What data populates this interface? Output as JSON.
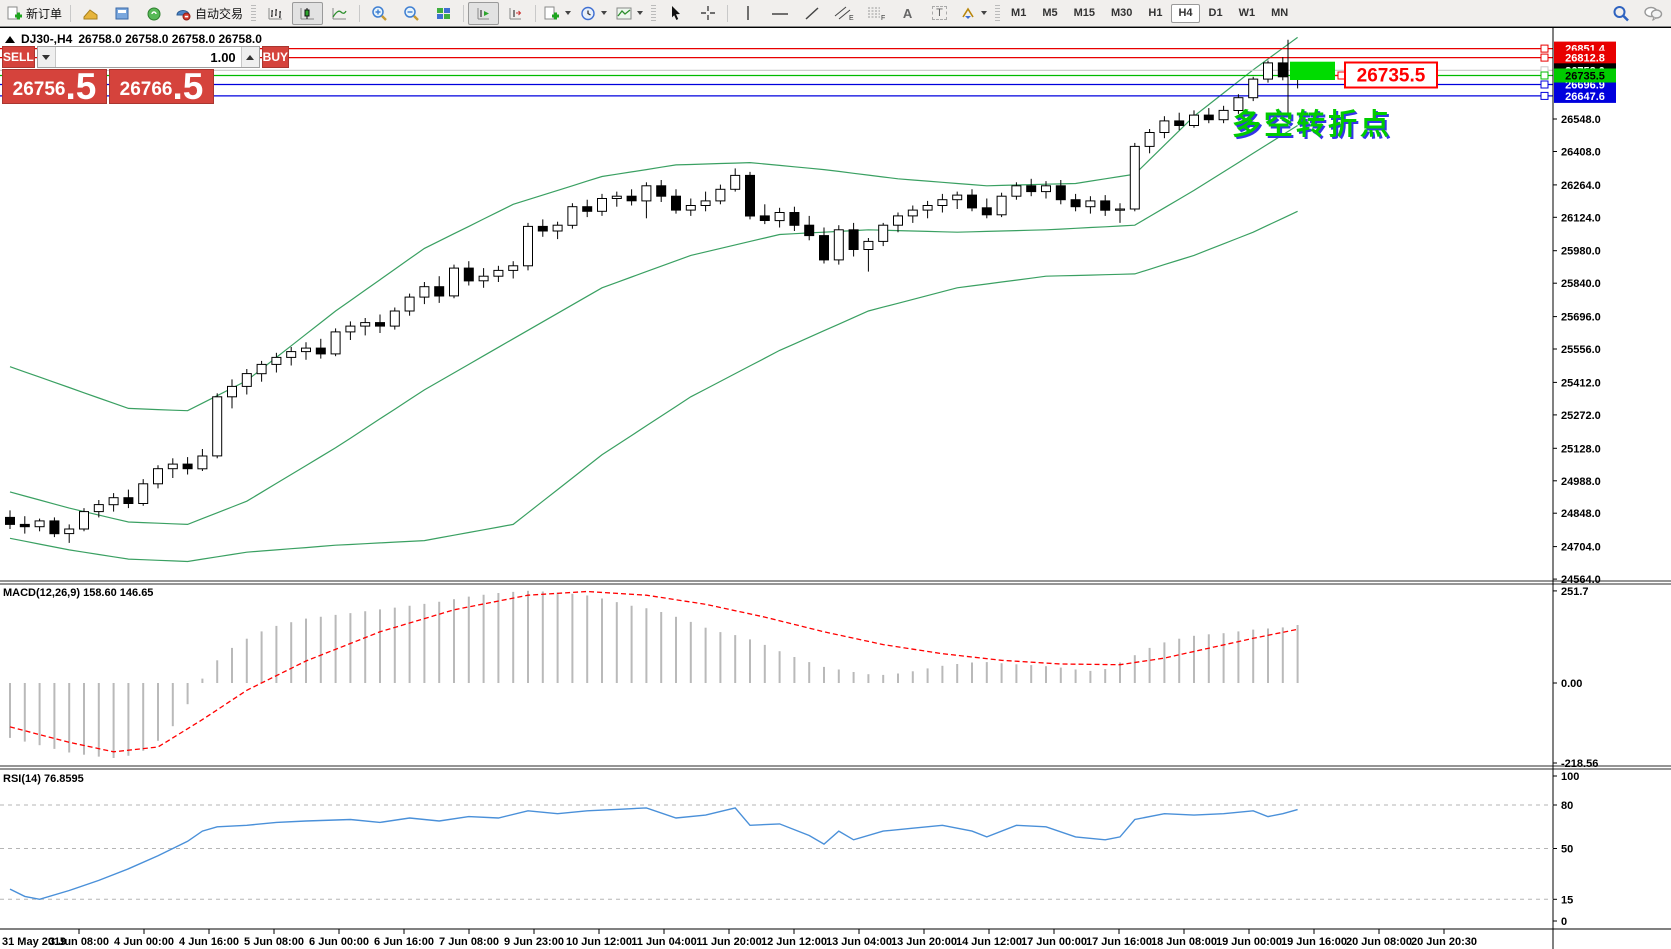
{
  "toolbar": {
    "new_order": "新订单",
    "autotrading": "自动交易",
    "icons": {
      "text_tool": "A",
      "label_tool": "T",
      "channel_suffix": "E",
      "fibonacci_suffix": "F"
    },
    "timeframes": [
      "M1",
      "M5",
      "M15",
      "M30",
      "H1",
      "H4",
      "D1",
      "W1",
      "MN"
    ],
    "active_timeframe": "H4"
  },
  "header": {
    "symbol_period": "DJ30-,H4",
    "ohlc": "26758.0 26758.0 26758.0 26758.0"
  },
  "trade_panel": {
    "sell_label": "SELL",
    "buy_label": "BUY",
    "volume": "1.00",
    "sell_price": "26756",
    "sell_price_frac": ".5",
    "buy_price": "26766",
    "buy_price_frac": ".5"
  },
  "indicators": {
    "macd_label": "MACD(12,26,9) 158.60 146.65",
    "rsi_label": "RSI(14) 76.8595"
  },
  "price_axis": {
    "main_ticks": [
      26548.0,
      26408.0,
      26264.0,
      26124.0,
      25980.0,
      25840.0,
      25696.0,
      25556.0,
      25412.0,
      25272.0,
      25128.0,
      24988.0,
      24848.0,
      24704.0,
      24564.0
    ],
    "macd_ticks": [
      "251.7",
      "0.00",
      "-218.56"
    ],
    "rsi_ticks": [
      100,
      80,
      50,
      15,
      0
    ]
  },
  "time_axis": [
    "31 May 2019",
    "3 Jun 08:00",
    "4 Jun 00:00",
    "4 Jun 16:00",
    "5 Jun 08:00",
    "6 Jun 00:00",
    "6 Jun 16:00",
    "7 Jun 08:00",
    "9 Jun 23:00",
    "10 Jun 12:00",
    "11 Jun 04:00",
    "11 Jun 20:00",
    "12 Jun 12:00",
    "13 Jun 04:00",
    "13 Jun 20:00",
    "14 Jun 12:00",
    "17 Jun 00:00",
    "17 Jun 16:00",
    "18 Jun 08:00",
    "19 Jun 00:00",
    "19 Jun 16:00",
    "20 Jun 08:00",
    "20 Jun 20:30"
  ],
  "chart_data": [
    {
      "type": "candlestick",
      "title": "DJ30-,H4",
      "timeframe": "H4",
      "ylim": [
        24564,
        26940
      ],
      "grid": false,
      "candles": [
        [
          24830,
          24860,
          24780,
          24800
        ],
        [
          24800,
          24835,
          24760,
          24790
        ],
        [
          24790,
          24825,
          24770,
          24815
        ],
        [
          24815,
          24830,
          24745,
          24760
        ],
        [
          24760,
          24800,
          24720,
          24780
        ],
        [
          24780,
          24870,
          24770,
          24855
        ],
        [
          24855,
          24905,
          24830,
          24885
        ],
        [
          24885,
          24935,
          24855,
          24915
        ],
        [
          24915,
          24950,
          24870,
          24890
        ],
        [
          24890,
          24995,
          24880,
          24975
        ],
        [
          24975,
          25055,
          24955,
          25040
        ],
        [
          25040,
          25085,
          25000,
          25060
        ],
        [
          25060,
          25090,
          25015,
          25040
        ],
        [
          25040,
          25125,
          25030,
          25095
        ],
        [
          25095,
          25365,
          25085,
          25350
        ],
        [
          25350,
          25425,
          25300,
          25395
        ],
        [
          25395,
          25470,
          25360,
          25450
        ],
        [
          25450,
          25505,
          25415,
          25490
        ],
        [
          25490,
          25540,
          25455,
          25520
        ],
        [
          25520,
          25565,
          25485,
          25545
        ],
        [
          25545,
          25585,
          25510,
          25560
        ],
        [
          25560,
          25600,
          25515,
          25535
        ],
        [
          25535,
          25645,
          25525,
          25630
        ],
        [
          25630,
          25675,
          25595,
          25655
        ],
        [
          25655,
          25690,
          25615,
          25670
        ],
        [
          25670,
          25705,
          25625,
          25655
        ],
        [
          25655,
          25735,
          25640,
          25720
        ],
        [
          25720,
          25795,
          25700,
          25780
        ],
        [
          25780,
          25845,
          25750,
          25825
        ],
        [
          25825,
          25870,
          25755,
          25785
        ],
        [
          25785,
          25920,
          25775,
          25905
        ],
        [
          25905,
          25935,
          25830,
          25850
        ],
        [
          25850,
          25905,
          25820,
          25870
        ],
        [
          25870,
          25915,
          25845,
          25895
        ],
        [
          25895,
          25935,
          25860,
          25915
        ],
        [
          25915,
          26100,
          25895,
          26085
        ],
        [
          26085,
          26115,
          26040,
          26065
        ],
        [
          26065,
          26105,
          26030,
          26090
        ],
        [
          26090,
          26185,
          26075,
          26170
        ],
        [
          26170,
          26200,
          26125,
          26150
        ],
        [
          26150,
          26225,
          26130,
          26205
        ],
        [
          26205,
          26235,
          26170,
          26215
        ],
        [
          26215,
          26245,
          26175,
          26195
        ],
        [
          26195,
          26275,
          26120,
          26260
        ],
        [
          26260,
          26285,
          26190,
          26215
        ],
        [
          26215,
          26245,
          26140,
          26155
        ],
        [
          26155,
          26205,
          26130,
          26175
        ],
        [
          26175,
          26235,
          26150,
          26195
        ],
        [
          26195,
          26265,
          26180,
          26245
        ],
        [
          26245,
          26335,
          26235,
          26305
        ],
        [
          26305,
          26320,
          26115,
          26130
        ],
        [
          26130,
          26180,
          26095,
          26110
        ],
        [
          26110,
          26165,
          26080,
          26145
        ],
        [
          26145,
          26170,
          26065,
          26090
        ],
        [
          26090,
          26130,
          26025,
          26045
        ],
        [
          26045,
          26080,
          25925,
          25940
        ],
        [
          25940,
          26090,
          25920,
          26070
        ],
        [
          26070,
          26100,
          25955,
          25985
        ],
        [
          25985,
          26035,
          25890,
          26020
        ],
        [
          26020,
          26100,
          26000,
          26090
        ],
        [
          26090,
          26145,
          26060,
          26130
        ],
        [
          26130,
          26175,
          26100,
          26155
        ],
        [
          26155,
          26195,
          26120,
          26175
        ],
        [
          26175,
          26225,
          26145,
          26200
        ],
        [
          26200,
          26235,
          26160,
          26220
        ],
        [
          26220,
          26245,
          26150,
          26165
        ],
        [
          26165,
          26205,
          26120,
          26135
        ],
        [
          26135,
          26230,
          26125,
          26215
        ],
        [
          26215,
          26275,
          26200,
          26260
        ],
        [
          26260,
          26290,
          26215,
          26235
        ],
        [
          26235,
          26280,
          26205,
          26260
        ],
        [
          26260,
          26285,
          26180,
          26200
        ],
        [
          26200,
          26225,
          26150,
          26170
        ],
        [
          26170,
          26215,
          26140,
          26195
        ],
        [
          26195,
          26220,
          26130,
          26155
        ],
        [
          26155,
          26185,
          26100,
          26160
        ],
        [
          26160,
          26445,
          26150,
          26430
        ],
        [
          26430,
          26505,
          26400,
          26490
        ],
        [
          26490,
          26560,
          26465,
          26540
        ],
        [
          26540,
          26575,
          26500,
          26520
        ],
        [
          26520,
          26585,
          26510,
          26565
        ],
        [
          26565,
          26595,
          26530,
          26545
        ],
        [
          26545,
          26605,
          26530,
          26585
        ],
        [
          26585,
          26655,
          26570,
          26640
        ],
        [
          26640,
          26730,
          26625,
          26720
        ],
        [
          26720,
          26800,
          26705,
          26790
        ],
        [
          26790,
          26815,
          26715,
          26730
        ],
        [
          26730,
          26790,
          26680,
          26758
        ]
      ],
      "bollinger": {
        "color": "#3aa062",
        "upper": [
          [
            0,
            25480
          ],
          [
            4,
            25390
          ],
          [
            8,
            25300
          ],
          [
            12,
            25290
          ],
          [
            16,
            25420
          ],
          [
            22,
            25720
          ],
          [
            28,
            25990
          ],
          [
            34,
            26180
          ],
          [
            40,
            26300
          ],
          [
            45,
            26350
          ],
          [
            50,
            26360
          ],
          [
            55,
            26330
          ],
          [
            60,
            26290
          ],
          [
            66,
            26260
          ],
          [
            72,
            26270
          ],
          [
            76,
            26310
          ],
          [
            80,
            26560
          ],
          [
            84,
            26760
          ],
          [
            87,
            26900
          ]
        ],
        "middle": [
          [
            0,
            24940
          ],
          [
            4,
            24870
          ],
          [
            8,
            24810
          ],
          [
            12,
            24800
          ],
          [
            16,
            24900
          ],
          [
            22,
            25130
          ],
          [
            28,
            25380
          ],
          [
            34,
            25600
          ],
          [
            40,
            25820
          ],
          [
            46,
            25960
          ],
          [
            52,
            26050
          ],
          [
            58,
            26070
          ],
          [
            64,
            26060
          ],
          [
            70,
            26070
          ],
          [
            76,
            26090
          ],
          [
            80,
            26240
          ],
          [
            84,
            26400
          ],
          [
            87,
            26520
          ]
        ],
        "lower": [
          [
            0,
            24740
          ],
          [
            4,
            24690
          ],
          [
            8,
            24650
          ],
          [
            12,
            24640
          ],
          [
            16,
            24680
          ],
          [
            22,
            24710
          ],
          [
            28,
            24730
          ],
          [
            34,
            24800
          ],
          [
            40,
            25100
          ],
          [
            46,
            25350
          ],
          [
            52,
            25550
          ],
          [
            58,
            25720
          ],
          [
            64,
            25820
          ],
          [
            70,
            25870
          ],
          [
            76,
            25880
          ],
          [
            80,
            25960
          ],
          [
            84,
            26060
          ],
          [
            87,
            26150
          ]
        ]
      },
      "horizontal_lines": [
        {
          "value": 26851.4,
          "label": "26851.4",
          "line": "#e80000",
          "bg": "#e80000",
          "fg": "#ffffff"
        },
        {
          "value": 26812.8,
          "label": "26812.8",
          "line": "#e80000",
          "bg": "#e80000",
          "fg": "#ffffff"
        },
        {
          "value": 26758.0,
          "label": "26758.0",
          "line": "#c8c8c8",
          "bg": "#000000",
          "fg": "#ffffff"
        },
        {
          "value": 26696.9,
          "label": "26696.9",
          "line": "#0000dd",
          "bg": "#0000dd",
          "fg": "#ffffff"
        },
        {
          "value": 26647.6,
          "label": "26647.6",
          "line": "#0000dd",
          "bg": "#0000dd",
          "fg": "#ffffff"
        },
        {
          "value": 26735.5,
          "label": "26735.5",
          "line": "#00bb00",
          "bg": "#00cc00",
          "fg": "#000000"
        }
      ],
      "annotations": {
        "highlight_box": {
          "x": 1290,
          "width": 45,
          "price_top": 26795,
          "price_bottom": 26716,
          "color": "#00dc00"
        },
        "price_callout": {
          "text": "26735.5",
          "price": 26735.5,
          "x": 1345,
          "color": "#ff0000"
        },
        "vertical_line": {
          "x": 1288,
          "price_top": 26890,
          "price_bottom": 26572
        },
        "turning_point_text": {
          "text": "多空转折点",
          "color": "#00cc00",
          "shadow": "#3535e8"
        }
      }
    },
    {
      "type": "bar",
      "name": "MACD(12,26,9)",
      "current_values": [
        158.6,
        146.65
      ],
      "ylim": [
        -218.56,
        251.7
      ],
      "values": [
        -150,
        -160,
        -170,
        -180,
        -190,
        -196,
        -201,
        -205,
        -199,
        -185,
        -158,
        -118,
        -58,
        12,
        62,
        96,
        121,
        141,
        156,
        166,
        176,
        181,
        186,
        191,
        196,
        201,
        206,
        211,
        216,
        222,
        229,
        236,
        241,
        246,
        249,
        252,
        250,
        247,
        244,
        239,
        231,
        221,
        211,
        204,
        194,
        181,
        167,
        151,
        139,
        131,
        119,
        104,
        87,
        71,
        57,
        44,
        37,
        30,
        24,
        22,
        26,
        32,
        40,
        47,
        52,
        56,
        57,
        54,
        51,
        49,
        46,
        42,
        37,
        33,
        38,
        56,
        76,
        96,
        111,
        121,
        129,
        133,
        136,
        141,
        146,
        149,
        152,
        158.6
      ],
      "signal_points": [
        [
          0,
          -120
        ],
        [
          4,
          -162
        ],
        [
          7,
          -188
        ],
        [
          10,
          -175
        ],
        [
          13,
          -100
        ],
        [
          16,
          -20
        ],
        [
          20,
          60
        ],
        [
          25,
          140
        ],
        [
          30,
          200
        ],
        [
          35,
          240
        ],
        [
          39,
          250
        ],
        [
          43,
          240
        ],
        [
          47,
          215
        ],
        [
          51,
          180
        ],
        [
          55,
          140
        ],
        [
          59,
          105
        ],
        [
          63,
          80
        ],
        [
          67,
          62
        ],
        [
          71,
          52
        ],
        [
          75,
          50
        ],
        [
          78,
          68
        ],
        [
          81,
          95
        ],
        [
          84,
          122
        ],
        [
          87,
          146.65
        ]
      ]
    },
    {
      "type": "line",
      "name": "RSI(14)",
      "current_value": 76.8595,
      "ylim": [
        0,
        100
      ],
      "levels": [
        80,
        50,
        15
      ],
      "points": [
        [
          0,
          22
        ],
        [
          1,
          17
        ],
        [
          2,
          15
        ],
        [
          4,
          21
        ],
        [
          6,
          28
        ],
        [
          8,
          36
        ],
        [
          10,
          45
        ],
        [
          12,
          55
        ],
        [
          13,
          62
        ],
        [
          14,
          65
        ],
        [
          16,
          66
        ],
        [
          18,
          68
        ],
        [
          20,
          69
        ],
        [
          23,
          70
        ],
        [
          25,
          68
        ],
        [
          27,
          71
        ],
        [
          29,
          69
        ],
        [
          31,
          72
        ],
        [
          33,
          71
        ],
        [
          35,
          76
        ],
        [
          37,
          74
        ],
        [
          39,
          76
        ],
        [
          41,
          77
        ],
        [
          43,
          78
        ],
        [
          45,
          71
        ],
        [
          47,
          73
        ],
        [
          49,
          78
        ],
        [
          50,
          66
        ],
        [
          52,
          67
        ],
        [
          54,
          59
        ],
        [
          55,
          53
        ],
        [
          56,
          62
        ],
        [
          57,
          56
        ],
        [
          59,
          62
        ],
        [
          61,
          64
        ],
        [
          63,
          66
        ],
        [
          65,
          62
        ],
        [
          66,
          58
        ],
        [
          68,
          66
        ],
        [
          70,
          65
        ],
        [
          72,
          58
        ],
        [
          74,
          56
        ],
        [
          75,
          58
        ],
        [
          76,
          70
        ],
        [
          78,
          74
        ],
        [
          80,
          73
        ],
        [
          82,
          74
        ],
        [
          84,
          76
        ],
        [
          85,
          72
        ],
        [
          86,
          74
        ],
        [
          87,
          76.86
        ]
      ]
    }
  ]
}
